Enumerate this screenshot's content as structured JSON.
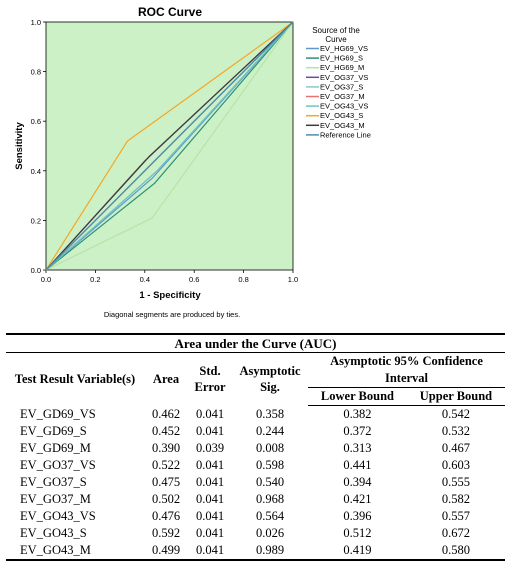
{
  "chart_data": {
    "type": "line",
    "title": "ROC Curve",
    "xlabel": "1 - Specificity",
    "ylabel": "Sensitivity",
    "xlim": [
      0,
      1
    ],
    "ylim": [
      0,
      1
    ],
    "xticks": [
      "0.0",
      "0.2",
      "0.4",
      "0.6",
      "0.8",
      "1.0"
    ],
    "yticks": [
      "0.0",
      "0.2",
      "0.4",
      "0.6",
      "0.8",
      "1.0"
    ],
    "plot_background": "#cdf1c6",
    "legend_title": "Source of the Curve",
    "legend_position": "right",
    "footnote": "Diagonal segments are produced by ties.",
    "series": [
      {
        "name": "EV_HG69_VS",
        "color": "#5b9bc7",
        "points": [
          [
            0,
            0
          ],
          [
            0.43,
            0.37
          ],
          [
            1,
            1
          ]
        ]
      },
      {
        "name": "EV_HG69_S",
        "color": "#2f8f77",
        "points": [
          [
            0,
            0
          ],
          [
            0.44,
            0.35
          ],
          [
            1,
            1
          ]
        ]
      },
      {
        "name": "EV_HG69_M",
        "color": "#b7e3a9",
        "points": [
          [
            0,
            0
          ],
          [
            0.43,
            0.21
          ],
          [
            1,
            1
          ]
        ]
      },
      {
        "name": "EV_OG37_VS",
        "color": "#6a4c93",
        "points": [
          [
            0,
            0
          ],
          [
            0.4,
            0.44
          ],
          [
            1,
            1
          ]
        ]
      },
      {
        "name": "EV_OG37_S",
        "color": "#8ac6d1",
        "points": [
          [
            0,
            0
          ],
          [
            0.45,
            0.4
          ],
          [
            1,
            1
          ]
        ]
      },
      {
        "name": "EV_OG37_M",
        "color": "#e8716b",
        "points": [
          [
            0,
            0
          ],
          [
            0.42,
            0.42
          ],
          [
            1,
            1
          ]
        ]
      },
      {
        "name": "EV_OG43_VS",
        "color": "#6fc1c9",
        "points": [
          [
            0,
            0
          ],
          [
            0.45,
            0.4
          ],
          [
            1,
            1
          ]
        ]
      },
      {
        "name": "EV_OG43_S",
        "color": "#f5a623",
        "points": [
          [
            0,
            0
          ],
          [
            0.33,
            0.52
          ],
          [
            1,
            1
          ]
        ]
      },
      {
        "name": "EV_OG43_M",
        "color": "#3b3b3b",
        "points": [
          [
            0,
            0
          ],
          [
            0.42,
            0.46
          ],
          [
            1,
            1
          ]
        ]
      },
      {
        "name": "Reference Line",
        "color": "#4d8fac",
        "points": [
          [
            0,
            0
          ],
          [
            1,
            1
          ]
        ]
      }
    ],
    "legend": [
      {
        "name": "EV_HG69_VS",
        "color": "#5b9bc7"
      },
      {
        "name": "EV_HG69_S",
        "color": "#2f8f77"
      },
      {
        "name": "EV_HG69_M",
        "color": "#b7e3a9"
      },
      {
        "name": "EV_OG37_VS",
        "color": "#6a4c93"
      },
      {
        "name": "EV_OG37_S",
        "color": "#8ac6d1"
      },
      {
        "name": "EV_OG37_M",
        "color": "#e8716b"
      },
      {
        "name": "EV_OG43_VS",
        "color": "#6fc1c9"
      },
      {
        "name": "EV_OG43_S",
        "color": "#f5a623"
      },
      {
        "name": "EV_OG43_M",
        "color": "#3b3b3b"
      },
      {
        "name": "Reference Line",
        "color": "#4d8fac"
      }
    ]
  },
  "table": {
    "title": "Area under the Curve (AUC)",
    "headers": {
      "test_var": "Test Result Variable(s)",
      "area": "Area",
      "std_error": "Std. Error",
      "asym_sig": "Asymptotic Sig.",
      "ci": "Asymptotic 95% Confidence Interval",
      "lower": "Lower Bound",
      "upper": "Upper Bound"
    },
    "rows": [
      {
        "var": "EV_GD69_VS",
        "area": "0.462",
        "se": "0.041",
        "sig": "0.358",
        "lower": "0.382",
        "upper": "0.542"
      },
      {
        "var": "EV_GD69_S",
        "area": "0.452",
        "se": "0.041",
        "sig": "0.244",
        "lower": "0.372",
        "upper": "0.532"
      },
      {
        "var": "EV_GD69_M",
        "area": "0.390",
        "se": "0.039",
        "sig": "0.008",
        "lower": "0.313",
        "upper": "0.467"
      },
      {
        "var": "EV_GO37_VS",
        "area": "0.522",
        "se": "0.041",
        "sig": "0.598",
        "lower": "0.441",
        "upper": "0.603"
      },
      {
        "var": "EV_GO37_S",
        "area": "0.475",
        "se": "0.041",
        "sig": "0.540",
        "lower": "0.394",
        "upper": "0.555"
      },
      {
        "var": "EV_GO37_M",
        "area": "0.502",
        "se": "0.041",
        "sig": "0.968",
        "lower": "0.421",
        "upper": "0.582"
      },
      {
        "var": "EV_GO43_VS",
        "area": "0.476",
        "se": "0.041",
        "sig": "0.564",
        "lower": "0.396",
        "upper": "0.557"
      },
      {
        "var": "EV_GO43_S",
        "area": "0.592",
        "se": "0.041",
        "sig": "0.026",
        "lower": "0.512",
        "upper": "0.672"
      },
      {
        "var": "EV_GO43_M",
        "area": "0.499",
        "se": "0.041",
        "sig": "0.989",
        "lower": "0.419",
        "upper": "0.580"
      }
    ]
  }
}
